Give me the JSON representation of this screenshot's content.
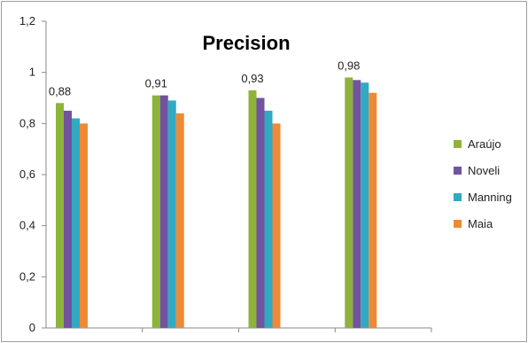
{
  "chart_data": {
    "type": "bar",
    "title": "Precision",
    "xlabel": "",
    "ylabel": "",
    "ylim": [
      0,
      1.2
    ],
    "ytick_step": 0.2,
    "ytick_labels": [
      "0",
      "0,2",
      "0,4",
      "0,6",
      "0,8",
      "1",
      "1,2"
    ],
    "categories": [
      "",
      "",
      "",
      ""
    ],
    "series": [
      {
        "name": "Araújo",
        "color": "#8db33b",
        "values": [
          0.88,
          0.91,
          0.93,
          0.98
        ]
      },
      {
        "name": "Noveli",
        "color": "#7153a0",
        "values": [
          0.85,
          0.91,
          0.9,
          0.97
        ]
      },
      {
        "name": "Manning",
        "color": "#31a9c3",
        "values": [
          0.82,
          0.89,
          0.85,
          0.96
        ]
      },
      {
        "name": "Maia",
        "color": "#ee8a35",
        "values": [
          0.8,
          0.84,
          0.8,
          0.92
        ]
      }
    ],
    "data_labels": [
      "0,88",
      "0,91",
      "0,93",
      "0,98"
    ],
    "legend_position": "right",
    "grid": false
  }
}
